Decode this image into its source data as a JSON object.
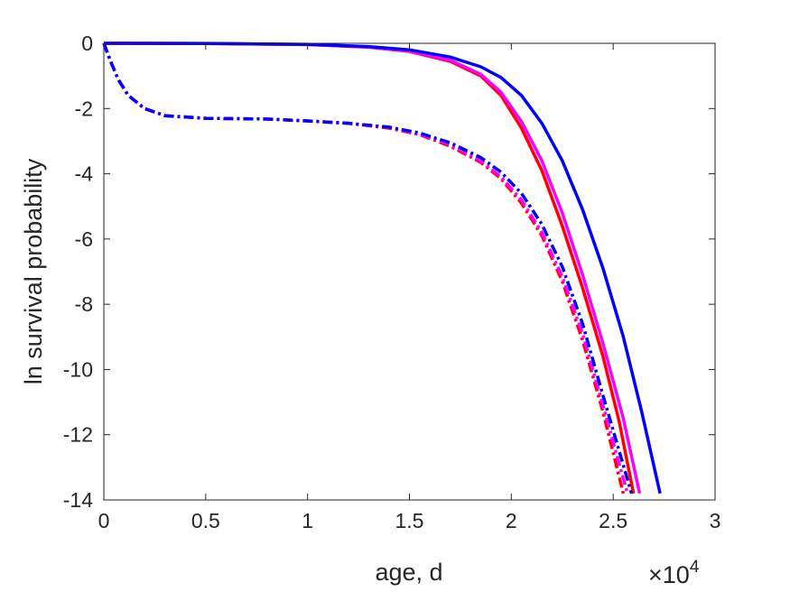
{
  "chart_data": {
    "type": "line",
    "xlabel": "age, d",
    "ylabel": "ln survival probability",
    "x_exponent_label": "×10",
    "x_exponent_power": "4",
    "xlim": [
      0,
      30000
    ],
    "ylim": [
      -14,
      0
    ],
    "x_ticks": [
      0,
      5000,
      10000,
      15000,
      20000,
      25000,
      30000
    ],
    "x_tick_labels": [
      "0",
      "0.5",
      "1",
      "1.5",
      "2",
      "2.5",
      "3"
    ],
    "y_ticks": [
      0,
      -2,
      -4,
      -6,
      -8,
      -10,
      -12,
      -14
    ],
    "y_tick_labels": [
      "0",
      "-2",
      "-4",
      "-6",
      "-8",
      "-10",
      "-12",
      "-14"
    ],
    "grid": false,
    "series": [
      {
        "color": "#ff0000",
        "style": "solid",
        "points": [
          [
            0,
            0
          ],
          [
            5000,
            -0.005
          ],
          [
            10000,
            -0.04
          ],
          [
            13000,
            -0.12
          ],
          [
            15000,
            -0.25
          ],
          [
            17000,
            -0.55
          ],
          [
            18500,
            -1.0
          ],
          [
            19500,
            -1.6
          ],
          [
            20500,
            -2.6
          ],
          [
            21500,
            -3.9
          ],
          [
            22500,
            -5.6
          ],
          [
            23500,
            -7.5
          ],
          [
            24500,
            -9.6
          ],
          [
            25300,
            -11.6
          ],
          [
            26000,
            -13.8
          ]
        ]
      },
      {
        "color": "#ff00ff",
        "style": "solid",
        "points": [
          [
            0,
            0
          ],
          [
            5000,
            -0.005
          ],
          [
            10000,
            -0.04
          ],
          [
            13000,
            -0.12
          ],
          [
            15000,
            -0.24
          ],
          [
            17000,
            -0.52
          ],
          [
            18500,
            -0.95
          ],
          [
            19500,
            -1.5
          ],
          [
            20500,
            -2.4
          ],
          [
            21500,
            -3.6
          ],
          [
            22500,
            -5.2
          ],
          [
            23500,
            -7.1
          ],
          [
            24500,
            -9.2
          ],
          [
            25500,
            -11.5
          ],
          [
            26300,
            -13.8
          ]
        ]
      },
      {
        "color": "#0000ff",
        "style": "solid",
        "points": [
          [
            0,
            0
          ],
          [
            5000,
            -0.004
          ],
          [
            10000,
            -0.03
          ],
          [
            13000,
            -0.1
          ],
          [
            15000,
            -0.2
          ],
          [
            17000,
            -0.42
          ],
          [
            18500,
            -0.72
          ],
          [
            19500,
            -1.05
          ],
          [
            20500,
            -1.6
          ],
          [
            21500,
            -2.45
          ],
          [
            22500,
            -3.6
          ],
          [
            23500,
            -5.1
          ],
          [
            24500,
            -6.9
          ],
          [
            25500,
            -9.0
          ],
          [
            26400,
            -11.3
          ],
          [
            27300,
            -13.8
          ]
        ]
      },
      {
        "color": "#ff0000",
        "style": "dashdot",
        "points": [
          [
            0,
            0
          ],
          [
            300,
            -0.5
          ],
          [
            700,
            -1.1
          ],
          [
            1200,
            -1.6
          ],
          [
            2000,
            -2.0
          ],
          [
            3000,
            -2.22
          ],
          [
            5000,
            -2.3
          ],
          [
            8000,
            -2.32
          ],
          [
            10000,
            -2.38
          ],
          [
            12000,
            -2.45
          ],
          [
            14000,
            -2.6
          ],
          [
            15500,
            -2.8
          ],
          [
            17000,
            -3.15
          ],
          [
            18500,
            -3.65
          ],
          [
            19500,
            -4.15
          ],
          [
            20500,
            -4.9
          ],
          [
            21500,
            -5.9
          ],
          [
            22500,
            -7.3
          ],
          [
            23500,
            -9.1
          ],
          [
            24500,
            -11.3
          ],
          [
            25500,
            -13.8
          ]
        ]
      },
      {
        "color": "#ff00ff",
        "style": "dashdot",
        "points": [
          [
            0,
            0
          ],
          [
            300,
            -0.5
          ],
          [
            700,
            -1.1
          ],
          [
            1200,
            -1.6
          ],
          [
            2000,
            -2.0
          ],
          [
            3000,
            -2.22
          ],
          [
            5000,
            -2.3
          ],
          [
            8000,
            -2.32
          ],
          [
            10000,
            -2.38
          ],
          [
            12000,
            -2.45
          ],
          [
            14000,
            -2.58
          ],
          [
            15500,
            -2.78
          ],
          [
            17000,
            -3.1
          ],
          [
            18500,
            -3.6
          ],
          [
            19500,
            -4.1
          ],
          [
            20500,
            -4.8
          ],
          [
            21500,
            -5.8
          ],
          [
            22500,
            -7.15
          ],
          [
            23500,
            -8.9
          ],
          [
            24500,
            -11.1
          ],
          [
            25700,
            -13.8
          ]
        ]
      },
      {
        "color": "#0000ff",
        "style": "dashdot",
        "points": [
          [
            0,
            0
          ],
          [
            300,
            -0.5
          ],
          [
            700,
            -1.1
          ],
          [
            1200,
            -1.6
          ],
          [
            2000,
            -2.0
          ],
          [
            3000,
            -2.22
          ],
          [
            5000,
            -2.3
          ],
          [
            8000,
            -2.32
          ],
          [
            10000,
            -2.38
          ],
          [
            12000,
            -2.45
          ],
          [
            14000,
            -2.57
          ],
          [
            15500,
            -2.75
          ],
          [
            17000,
            -3.05
          ],
          [
            18500,
            -3.5
          ],
          [
            19500,
            -3.95
          ],
          [
            20500,
            -4.6
          ],
          [
            21500,
            -5.55
          ],
          [
            22500,
            -6.85
          ],
          [
            23500,
            -8.6
          ],
          [
            24500,
            -10.8
          ],
          [
            25900,
            -13.8
          ]
        ]
      }
    ]
  }
}
